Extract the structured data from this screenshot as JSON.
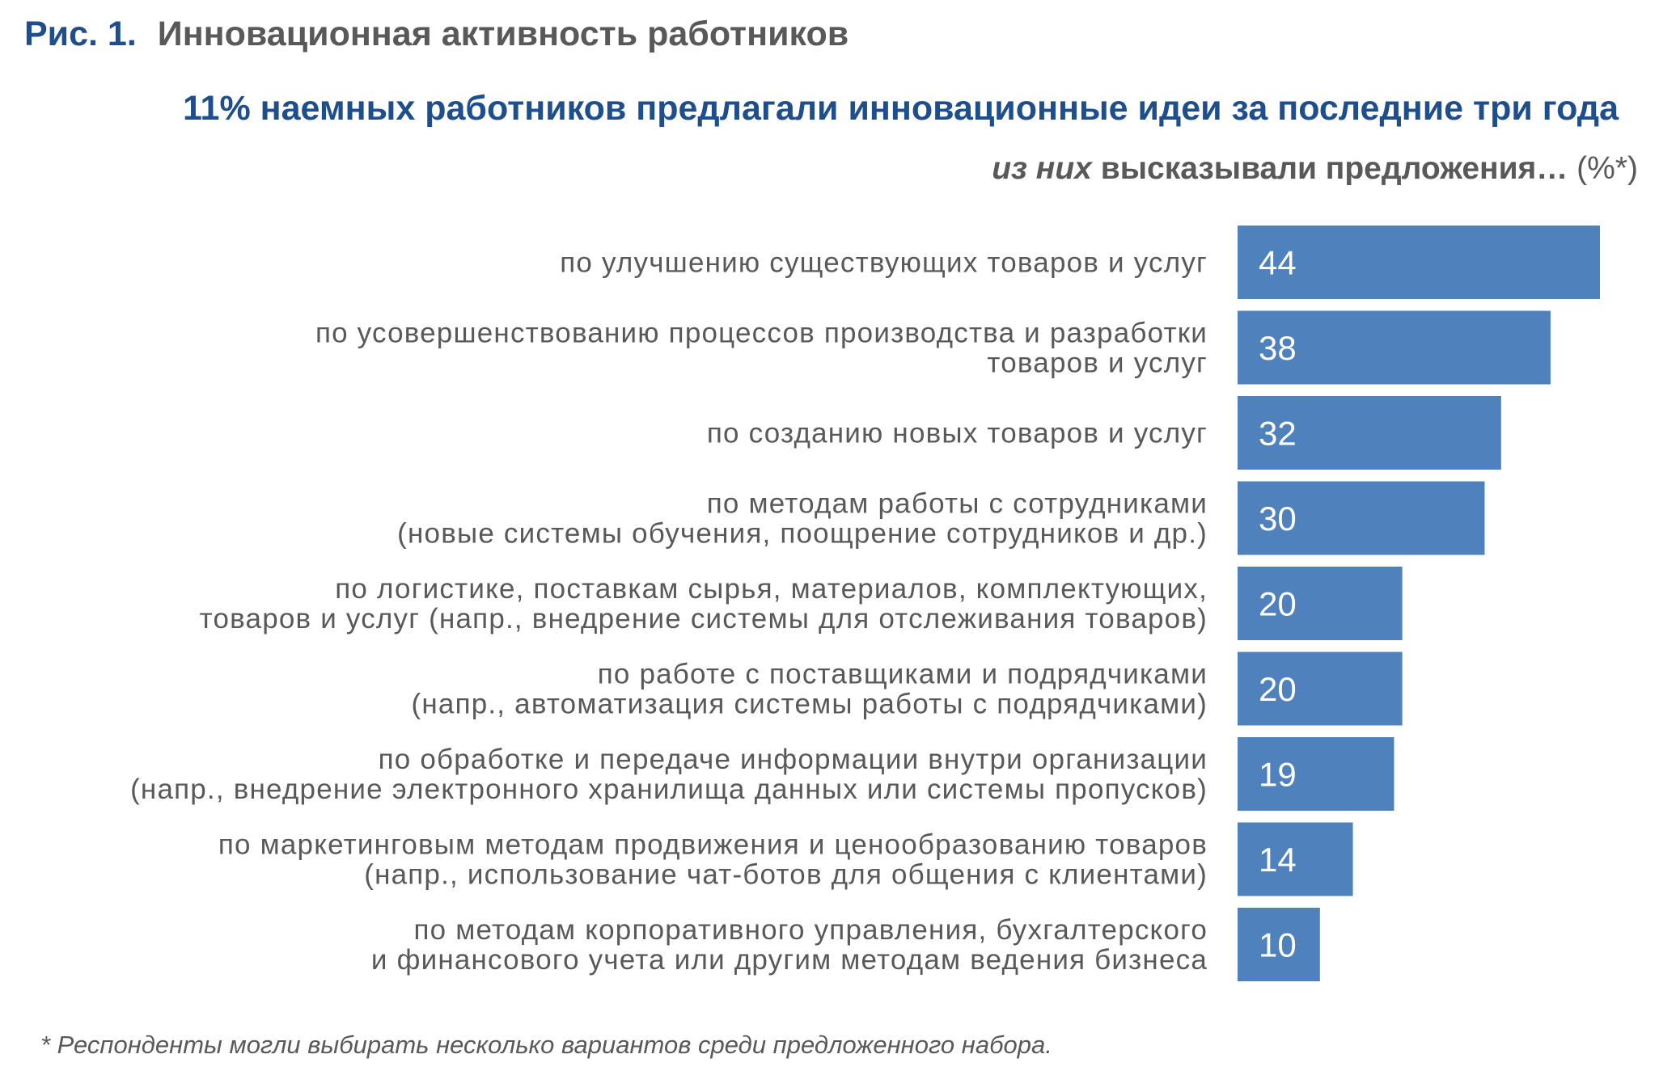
{
  "figure": {
    "number": "Рис. 1.",
    "title": "Инновационная активность работников"
  },
  "subtitle": "11% наемных работников предлагали инновационные идеи за последние три года",
  "sub_subtitle": {
    "italic_part": "из них",
    "bold_part": "высказывали предложения…",
    "unit": "(%*)"
  },
  "footnote": "* Респонденты могли выбирать несколько вариантов среди предложенного набора.",
  "colors": {
    "bar": "#4f81bd",
    "title_blue": "#1f4e8c",
    "text_gray": "#595959"
  },
  "chart_data": {
    "type": "bar",
    "orientation": "horizontal",
    "title": "11% наемных работников предлагали инновационные идеи за последние три года",
    "unit": "%",
    "xlim": [
      0,
      44
    ],
    "grid": false,
    "legend": "none",
    "categories": [
      [
        "по улучшению существующих товаров и услуг"
      ],
      [
        "по усовершенствованию процессов производства и разработки",
        "товаров и услуг"
      ],
      [
        "по созданию новых товаров и услуг"
      ],
      [
        "по методам работы с сотрудниками",
        "(новые системы обучения, поощрение сотрудников и др.)"
      ],
      [
        "по логистике, поставкам сырья, материалов, комплектующих,",
        "товаров и услуг (напр., внедрение системы для отслеживания товаров)"
      ],
      [
        "по работе с поставщиками и подрядчиками",
        "(напр., автоматизация системы работы с подрядчиками)"
      ],
      [
        "по обработке и передаче информации внутри организации",
        "(напр., внедрение электронного хранилища данных или системы пропусков)"
      ],
      [
        "по маркетинговым методам продвижения и ценообразованию товаров",
        "(напр., использование чат-ботов для общения с клиентами)"
      ],
      [
        "по методам корпоративного управления, бухгалтерского",
        "и финансового учета или другим методам ведения бизнеса"
      ]
    ],
    "values": [
      44,
      38,
      32,
      30,
      20,
      20,
      19,
      14,
      10
    ]
  }
}
